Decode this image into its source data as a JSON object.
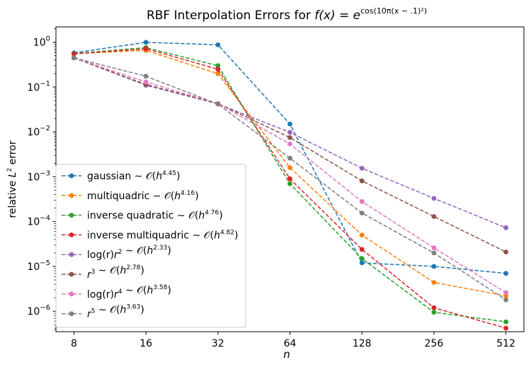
{
  "chart_data": {
    "type": "line",
    "title_prefix": "RBF Interpolation Errors for ",
    "title_math": "f(x) = e",
    "title_exponent": "cos(10π(x − .1)²)",
    "xlabel": "n",
    "ylabel_prefix": "relative ",
    "ylabel_math": "L",
    "ylabel_sup": "2",
    "ylabel_suffix": " error",
    "x_scale": "log2",
    "y_scale": "log10",
    "grid": false,
    "legend_position": "lower-left",
    "categories": [
      "8",
      "16",
      "32",
      "64",
      "128",
      "256",
      "512"
    ],
    "x": [
      8,
      16,
      32,
      64,
      128,
      256,
      512
    ],
    "ylim": [
      3.5e-07,
      2.2
    ],
    "y_ticks": [
      {
        "value": 1.0,
        "mantissa": "10",
        "exp": "0"
      },
      {
        "value": 0.1,
        "mantissa": "10",
        "exp": "−1"
      },
      {
        "value": 0.01,
        "mantissa": "10",
        "exp": "−2"
      },
      {
        "value": 0.001,
        "mantissa": "10",
        "exp": "−3"
      },
      {
        "value": 0.0001,
        "mantissa": "10",
        "exp": "−4"
      },
      {
        "value": 1e-05,
        "mantissa": "10",
        "exp": "−5"
      },
      {
        "value": 1e-06,
        "mantissa": "10",
        "exp": "−6"
      }
    ],
    "series": [
      {
        "name": "gaussian",
        "rate": "4.45",
        "color": "#1f77b4",
        "values": [
          0.58,
          1.0,
          0.88,
          0.015,
          1.2e-05,
          1e-05,
          7e-06
        ]
      },
      {
        "name": "multiquadric",
        "rate": "4.16",
        "color": "#ff7f0e",
        "values": [
          0.56,
          0.66,
          0.2,
          0.0016,
          5e-05,
          4.4e-06,
          2.2e-06
        ]
      },
      {
        "name": "inverse quadratic",
        "rate": "4.76",
        "color": "#2ca02c",
        "values": [
          0.56,
          0.76,
          0.3,
          0.0007,
          1.5e-05,
          9.5e-07,
          5.8e-07
        ]
      },
      {
        "name": "inverse multiquadric",
        "rate": "4.82",
        "color": "#d62728",
        "values": [
          0.55,
          0.72,
          0.25,
          0.0009,
          2.4e-05,
          1.2e-06,
          4.2e-07
        ]
      },
      {
        "name": "log(r)r^2",
        "rate": "2.33",
        "color": "#9467bd",
        "values": [
          0.45,
          0.11,
          0.042,
          0.0098,
          0.00155,
          0.00033,
          7.3e-05
        ]
      },
      {
        "name": "r^3",
        "rate": "2.78",
        "color": "#8c564b",
        "values": [
          0.45,
          0.115,
          0.043,
          0.0075,
          0.00081,
          0.00013,
          2.1e-05
        ]
      },
      {
        "name": "log(r)r^4",
        "rate": "3.58",
        "color": "#e377c2",
        "values": [
          0.45,
          0.13,
          0.043,
          0.0054,
          0.00028,
          2.6e-05,
          2.6e-06
        ]
      },
      {
        "name": "r^5",
        "rate": "3.63",
        "color": "#7f7f7f",
        "values": [
          0.45,
          0.175,
          0.042,
          0.0026,
          0.000155,
          2e-05,
          1.8e-06
        ]
      }
    ]
  }
}
